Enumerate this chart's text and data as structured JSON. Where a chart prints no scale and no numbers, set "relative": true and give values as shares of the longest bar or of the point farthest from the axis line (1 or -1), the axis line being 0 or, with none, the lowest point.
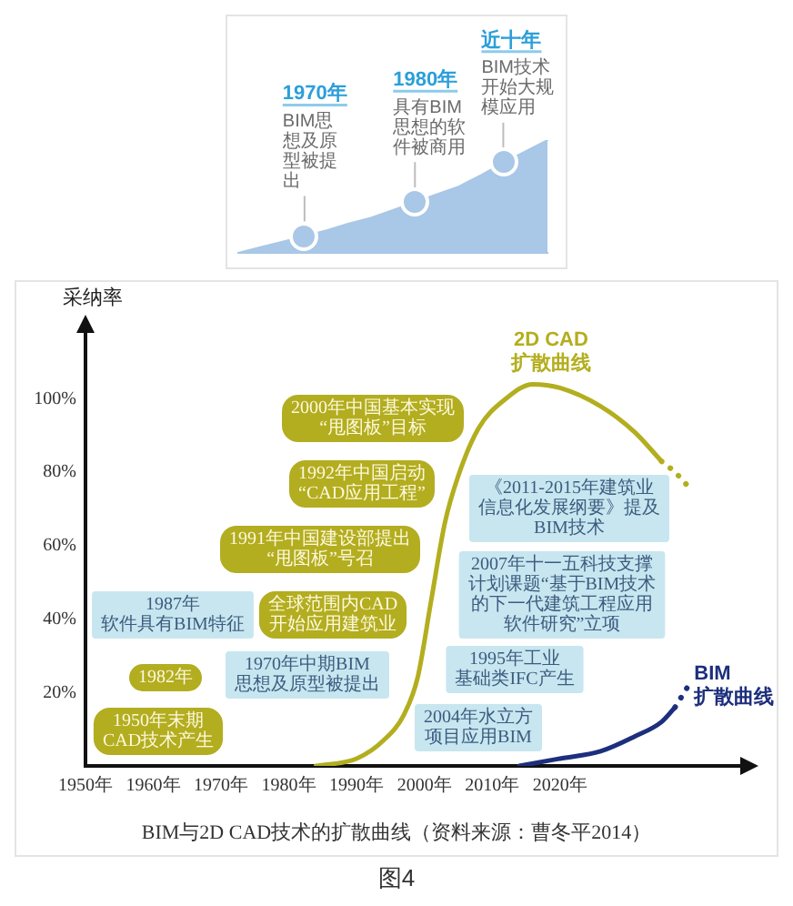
{
  "chart_data": [
    {
      "type": "area",
      "relative": true,
      "categories": [
        null,
        null,
        null,
        null,
        null,
        null,
        null,
        null,
        null,
        null,
        null,
        null,
        null,
        null,
        null
      ],
      "series": [
        {
          "color": "#a9c7e7",
          "values": [
            0,
            0.05,
            0.1,
            0.15,
            0.2,
            0.26,
            0.31,
            0.38,
            0.45,
            0.52,
            0.59,
            0.69,
            0.8,
            0.9,
            1
          ]
        }
      ],
      "annotations": [
        "1970年",
        "BIM思想及原型被提出",
        "1980年",
        "具有BIM思想的软件被商用",
        "近十年",
        "BIM技术开始大规模应用"
      ]
    },
    {
      "type": "line",
      "ylabel": "采纳率",
      "xlim": [
        1950,
        2045
      ],
      "ylim": [
        0,
        115
      ],
      "xticks": [
        {
          "value": 1950,
          "label": "1950年"
        },
        {
          "value": 1960,
          "label": "1960年"
        },
        {
          "value": 1970,
          "label": "1970年"
        },
        {
          "value": 1980,
          "label": "1980年"
        },
        {
          "value": 1990,
          "label": "1990年"
        },
        {
          "value": 2000,
          "label": "2000年"
        },
        {
          "value": 2010,
          "label": "2010年"
        },
        {
          "value": 2020,
          "label": "2020年"
        }
      ],
      "yticks": [
        {
          "value": 20,
          "label": "20%"
        },
        {
          "value": 40,
          "label": "40%"
        },
        {
          "value": 60,
          "label": "60%"
        },
        {
          "value": 80,
          "label": "80%"
        },
        {
          "value": 100,
          "label": "100%"
        }
      ],
      "series": [
        {
          "name": "2D CAD 扩散曲线",
          "color": "#b3ae1f",
          "x": [
            1984,
            1990,
            1994,
            1997,
            1999,
            2001,
            2003,
            2005,
            2008,
            2012,
            2016,
            2020,
            2026,
            2031,
            2035
          ],
          "values": [
            0,
            2,
            7,
            14,
            24,
            45,
            66,
            79,
            92,
            100,
            104,
            103,
            98,
            91,
            83
          ]
        },
        {
          "color": "#b3ae1f",
          "line_style": "dotted",
          "x": [
            2035,
            2037,
            2039
          ],
          "values": [
            83,
            80,
            76
          ]
        },
        {
          "name": "BIM 扩散曲线",
          "color": "#1d2f7c",
          "x": [
            2014,
            2020,
            2026,
            2031,
            2035,
            2037
          ],
          "values": [
            0,
            2,
            4,
            8,
            12,
            16
          ]
        },
        {
          "color": "#1d2f7c",
          "line_style": "dotted",
          "x": [
            2037,
            2038,
            2039
          ],
          "values": [
            16,
            19,
            22
          ]
        }
      ],
      "annotations": [
        "1950年末期CAD技术产生",
        "1982年",
        "全球范围内CAD开始应用建筑业",
        "1991年中国建设部提出“甩图板”号召",
        "1992年中国启动“CAD应用工程”",
        "2000年中国基本实现“甩图板”目标",
        "1970年中期BIM思想及原型被提出",
        "1987年软件具有BIM特征",
        "1995年工业基础类IFC产生",
        "2007年十一五科技支撑计划课题“基于BIM技术的下一代建筑工程应用软件研究”立项",
        "《2011-2015年建筑业信息化发展纲要》提及BIM技术",
        "2004年水立方项目应用BIM",
        "BIM与2D CAD技术的扩散曲线（资料来源：曹冬平2014）",
        "图4"
      ]
    }
  ]
}
